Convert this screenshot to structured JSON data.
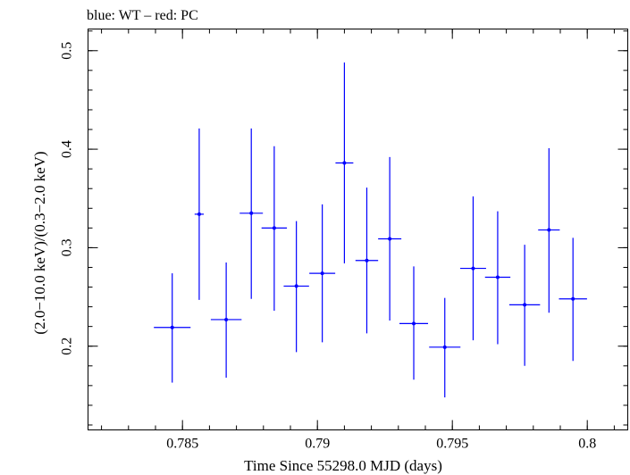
{
  "chart_data": {
    "type": "scatter",
    "title": "blue: WT – red: PC",
    "xlabel": "Time Since 55298.0 MJD (days)",
    "ylabel": "(2.0−10.0 keV)/(0.3−2.0 keV)",
    "xlim": [
      0.7815,
      0.8015
    ],
    "ylim": [
      0.115,
      0.522
    ],
    "x_ticks": [
      "0.785",
      "0.79",
      "0.795",
      "0.8"
    ],
    "x_tick_values": [
      0.785,
      0.79,
      0.795,
      0.8
    ],
    "y_ticks": [
      "0.2",
      "0.3",
      "0.4",
      "0.5"
    ],
    "y_tick_values": [
      0.2,
      0.3,
      0.4,
      0.5
    ],
    "series": [
      {
        "color": "#0000ff",
        "points": [
          {
            "x": 0.78462,
            "xerr": 0.00068,
            "y": 0.219,
            "ylo": 0.163,
            "yhi": 0.274
          },
          {
            "x": 0.78562,
            "xerr": 0.00017,
            "y": 0.334,
            "ylo": 0.247,
            "yhi": 0.421
          },
          {
            "x": 0.78662,
            "xerr": 0.00057,
            "y": 0.227,
            "ylo": 0.168,
            "yhi": 0.285
          },
          {
            "x": 0.78755,
            "xerr": 0.00043,
            "y": 0.335,
            "ylo": 0.248,
            "yhi": 0.421
          },
          {
            "x": 0.7884,
            "xerr": 0.00047,
            "y": 0.32,
            "ylo": 0.236,
            "yhi": 0.403
          },
          {
            "x": 0.78922,
            "xerr": 0.00047,
            "y": 0.261,
            "ylo": 0.194,
            "yhi": 0.327
          },
          {
            "x": 0.79018,
            "xerr": 0.00048,
            "y": 0.274,
            "ylo": 0.204,
            "yhi": 0.344
          },
          {
            "x": 0.791,
            "xerr": 0.00033,
            "y": 0.386,
            "ylo": 0.284,
            "yhi": 0.488
          },
          {
            "x": 0.79183,
            "xerr": 0.00042,
            "y": 0.287,
            "ylo": 0.213,
            "yhi": 0.361
          },
          {
            "x": 0.79268,
            "xerr": 0.00043,
            "y": 0.309,
            "ylo": 0.226,
            "yhi": 0.392
          },
          {
            "x": 0.79357,
            "xerr": 0.00053,
            "y": 0.223,
            "ylo": 0.166,
            "yhi": 0.281
          },
          {
            "x": 0.79472,
            "xerr": 0.00058,
            "y": 0.199,
            "ylo": 0.148,
            "yhi": 0.249
          },
          {
            "x": 0.79577,
            "xerr": 0.00048,
            "y": 0.279,
            "ylo": 0.206,
            "yhi": 0.352
          },
          {
            "x": 0.79668,
            "xerr": 0.00047,
            "y": 0.27,
            "ylo": 0.202,
            "yhi": 0.337
          },
          {
            "x": 0.79768,
            "xerr": 0.00057,
            "y": 0.242,
            "ylo": 0.18,
            "yhi": 0.303
          },
          {
            "x": 0.79858,
            "xerr": 0.0004,
            "y": 0.318,
            "ylo": 0.234,
            "yhi": 0.401
          },
          {
            "x": 0.79947,
            "xerr": 0.00052,
            "y": 0.248,
            "ylo": 0.185,
            "yhi": 0.31
          }
        ]
      }
    ]
  }
}
